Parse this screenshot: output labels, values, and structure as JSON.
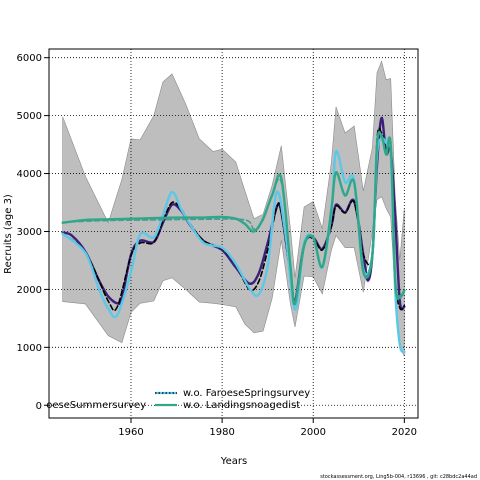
{
  "chart_data": {
    "type": "line",
    "xlabel": "Years",
    "ylabel": "Recruits (age 3)",
    "xlim": [
      1942,
      2023
    ],
    "ylim": [
      -220,
      6150
    ],
    "x_ticks": [
      1960,
      1980,
      2000,
      2020
    ],
    "y_ticks": [
      0,
      1000,
      2000,
      3000,
      4000,
      5000,
      6000
    ],
    "grid": true,
    "legend_placement": "bottom-center",
    "footer": "stockassessment.org, Ling5b-004, r13696 , git: c28bdc2a44ad",
    "band": {
      "color": "#bebebe",
      "x": [
        1945,
        1950,
        1955,
        1958,
        1960,
        1962,
        1965,
        1967,
        1969,
        1972,
        1975,
        1978,
        1980,
        1983,
        1985,
        1987,
        1989,
        1991,
        1993,
        1995,
        1996,
        1998,
        2000,
        2002,
        2004,
        2005,
        2007,
        2009,
        2011,
        2013,
        2014,
        2015,
        2016,
        2017,
        2018,
        2019,
        2020
      ],
      "upper": [
        4980,
        3950,
        3150,
        3900,
        4600,
        4580,
        5000,
        5580,
        5720,
        5200,
        4600,
        4380,
        4420,
        4200,
        3700,
        3220,
        3300,
        3800,
        4480,
        3050,
        2200,
        3420,
        3520,
        3050,
        4200,
        5150,
        4700,
        4820,
        3700,
        4450,
        5740,
        5940,
        5620,
        5640,
        3600,
        2500,
        3400
      ],
      "lower": [
        1790,
        1750,
        1200,
        1080,
        1600,
        1760,
        1800,
        2150,
        2200,
        2000,
        1780,
        1760,
        1740,
        1700,
        1400,
        1250,
        1280,
        1850,
        2850,
        1750,
        1350,
        2230,
        2220,
        1920,
        2680,
        2930,
        2720,
        2720,
        1950,
        3000,
        3550,
        3600,
        3400,
        3250,
        1900,
        1000,
        850
      ]
    },
    "series": [
      {
        "name": "",
        "color": "#3b1f7a",
        "x": [
          1945,
          1947,
          1950,
          1953,
          1955,
          1957,
          1958,
          1960,
          1962,
          1965,
          1967,
          1969,
          1971,
          1973,
          1976,
          1980,
          1983,
          1986,
          1988,
          1990,
          1992,
          1993,
          1995,
          1996,
          1998,
          2000,
          2002,
          2004,
          2005,
          2007,
          2009,
          2011,
          2012,
          2013,
          2014,
          2015,
          2016,
          2017,
          2018,
          2019,
          2020
        ],
        "y": [
          2980,
          2930,
          2650,
          2150,
          1880,
          1760,
          1850,
          2600,
          2840,
          2820,
          3150,
          3460,
          3360,
          3110,
          2830,
          2680,
          2380,
          2100,
          2270,
          2800,
          3420,
          3340,
          2280,
          1780,
          2780,
          2890,
          2700,
          3100,
          3460,
          3330,
          3520,
          2600,
          2150,
          2600,
          4150,
          4960,
          4350,
          4400,
          3250,
          1800,
          1700
        ]
      },
      {
        "name": "",
        "color": "#000000",
        "dashed": true,
        "x": [
          1945,
          1950,
          1955,
          1957,
          1960,
          1962,
          1965,
          1967,
          1969,
          1971,
          1973,
          1976,
          1980,
          1983,
          1986,
          1988,
          1990,
          1992,
          1993,
          1995,
          1996,
          1998,
          2000,
          2002,
          2004,
          2005,
          2007,
          2009,
          2011,
          2013,
          2014,
          2015,
          2016,
          2017,
          2018,
          2019,
          2020
        ],
        "y": [
          2960,
          2640,
          1800,
          1700,
          2580,
          2800,
          2810,
          3180,
          3500,
          3390,
          3130,
          2840,
          2700,
          2420,
          2000,
          2130,
          2680,
          3420,
          3330,
          2240,
          1780,
          2760,
          2880,
          2680,
          3090,
          3440,
          3320,
          3500,
          2600,
          2620,
          4580,
          4700,
          4380,
          4300,
          2200,
          1680,
          1720
        ]
      },
      {
        "name": "",
        "color": "#5bc8e8",
        "x": [
          1945,
          1950,
          1953,
          1955,
          1957,
          1960,
          1962,
          1965,
          1967,
          1969,
          1971,
          1973,
          1976,
          1980,
          1983,
          1986,
          1988,
          1990,
          1992,
          1994,
          1996,
          1998,
          2000,
          2002,
          2004,
          2005,
          2007,
          2009,
          2011,
          2013,
          2014,
          2015,
          2016,
          2017,
          2018,
          2019,
          2020
        ],
        "y": [
          2960,
          2630,
          2000,
          1670,
          1560,
          2300,
          2950,
          2900,
          3280,
          3680,
          3390,
          3120,
          2800,
          2720,
          2440,
          2020,
          1910,
          2400,
          3680,
          2900,
          1650,
          2800,
          2890,
          2380,
          3340,
          4380,
          3850,
          3880,
          2350,
          2620,
          4320,
          4600,
          4530,
          4400,
          2000,
          1050,
          920
        ]
      },
      {
        "name": "",
        "color": "#4a9a8e",
        "dashed": true,
        "x": [
          1945,
          1955,
          1965,
          1975,
          1985,
          1987,
          1989,
          1991,
          1993,
          1995,
          1996,
          1998,
          2000,
          2002,
          2004,
          2005,
          2007,
          2009,
          2011,
          2013,
          2014,
          2015,
          2016,
          2017,
          2018,
          2019,
          2020
        ],
        "y": [
          3160,
          3190,
          3200,
          3210,
          3200,
          3040,
          3200,
          3620,
          3850,
          2400,
          1770,
          2780,
          2890,
          2390,
          3400,
          4000,
          3640,
          3830,
          2330,
          2610,
          4520,
          4650,
          4320,
          4500,
          2120,
          1850,
          1960
        ]
      },
      {
        "name": "",
        "color": "#2fa88a",
        "x": [
          1945,
          1950,
          1955,
          1960,
          1965,
          1970,
          1975,
          1980,
          1983,
          1985,
          1987,
          1989,
          1991,
          1993,
          1995,
          1996,
          1998,
          2000,
          2002,
          2004,
          2005,
          2007,
          2009,
          2011,
          2013,
          2014,
          2015,
          2016,
          2017,
          2018,
          2019,
          2020
        ],
        "y": [
          3150,
          3200,
          3210,
          3220,
          3230,
          3240,
          3240,
          3250,
          3220,
          3130,
          3000,
          3220,
          3630,
          3920,
          2400,
          1750,
          2750,
          2900,
          2390,
          3390,
          4020,
          3620,
          3840,
          2300,
          2600,
          4500,
          4650,
          4330,
          4500,
          2150,
          1880,
          1980
        ]
      }
    ],
    "legend": [
      {
        "label": "w.o. FaroeseSpringsurvey",
        "color": "#5bc8e8",
        "style": "dotted",
        "symbol_color": "#000000"
      },
      {
        "label": "w.o. Landingsnoagedist",
        "color": "#2fa88a",
        "style": "dashed",
        "symbol_color": "#2fa88a"
      },
      {
        "label": "oeseSummersurvey",
        "color": "#3b1f7a",
        "style": "none"
      }
    ]
  }
}
